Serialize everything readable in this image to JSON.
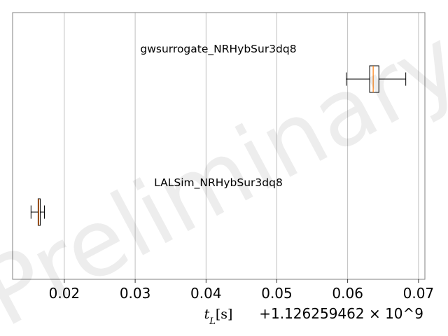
{
  "chart_data": {
    "type": "boxplot",
    "orientation": "horizontal",
    "title": "",
    "xlabel": "t_L[s]",
    "x_offset_label": "+1.126259462 × 10^9",
    "xlim": [
      0.0127,
      0.0709
    ],
    "xticks": [
      0.02,
      0.03,
      0.04,
      0.05,
      0.06,
      0.07
    ],
    "xtick_labels": [
      "0.02",
      "0.03",
      "0.04",
      "0.05",
      "0.06",
      "0.07"
    ],
    "grid": "vertical",
    "watermark": "Preliminary",
    "series": [
      {
        "name": "gwsurrogate_NRHybSur3dq8",
        "whisker_low": 0.0598,
        "q1": 0.0631,
        "median": 0.0636,
        "q3": 0.0644,
        "whisker_high": 0.0682
      },
      {
        "name": "LALSim_NRHybSur3dq8",
        "whisker_low": 0.0153,
        "q1": 0.0163,
        "median": 0.0164,
        "q3": 0.0166,
        "whisker_high": 0.0172
      }
    ],
    "colors": {
      "box": "#000000",
      "median": "#ff7f0e",
      "grid": "#b0b0b0",
      "axes": "#808080"
    }
  }
}
